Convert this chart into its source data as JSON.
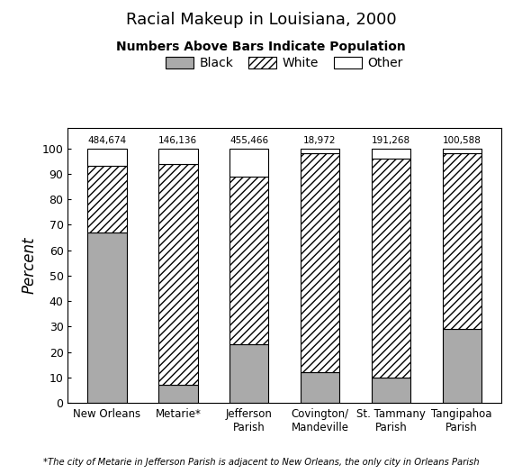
{
  "title": "Racial Makeup in Louisiana, 2000",
  "subtitle": "Numbers Above Bars Indicate Population",
  "ylabel": "Percent",
  "footnote": "*The city of Metarie in Jefferson Parish is adjacent to New Orleans, the only city in Orleans Parish",
  "categories": [
    "New Orleans",
    "Metarie*",
    "Jefferson\nParish",
    "Covington/\nMandeville",
    "St. Tammany\nParish",
    "Tangipahoa\nParish"
  ],
  "populations": [
    "484,674",
    "146,136",
    "455,466",
    "18,972",
    "191,268",
    "100,588"
  ],
  "black_pct": [
    67,
    7,
    23,
    12,
    10,
    29
  ],
  "white_pct": [
    26,
    87,
    66,
    86,
    86,
    69
  ],
  "other_pct": [
    7,
    6,
    11,
    2,
    4,
    2
  ],
  "black_color": "#aaaaaa",
  "white_hatch": "////",
  "other_color": "#ffffff",
  "bar_edge_color": "#000000",
  "bg_color": "#ffffff",
  "legend_labels": [
    "Black",
    "White",
    "Other"
  ],
  "ylim": [
    0,
    110
  ],
  "yticks": [
    0,
    10,
    20,
    30,
    40,
    50,
    60,
    70,
    80,
    90,
    100
  ]
}
